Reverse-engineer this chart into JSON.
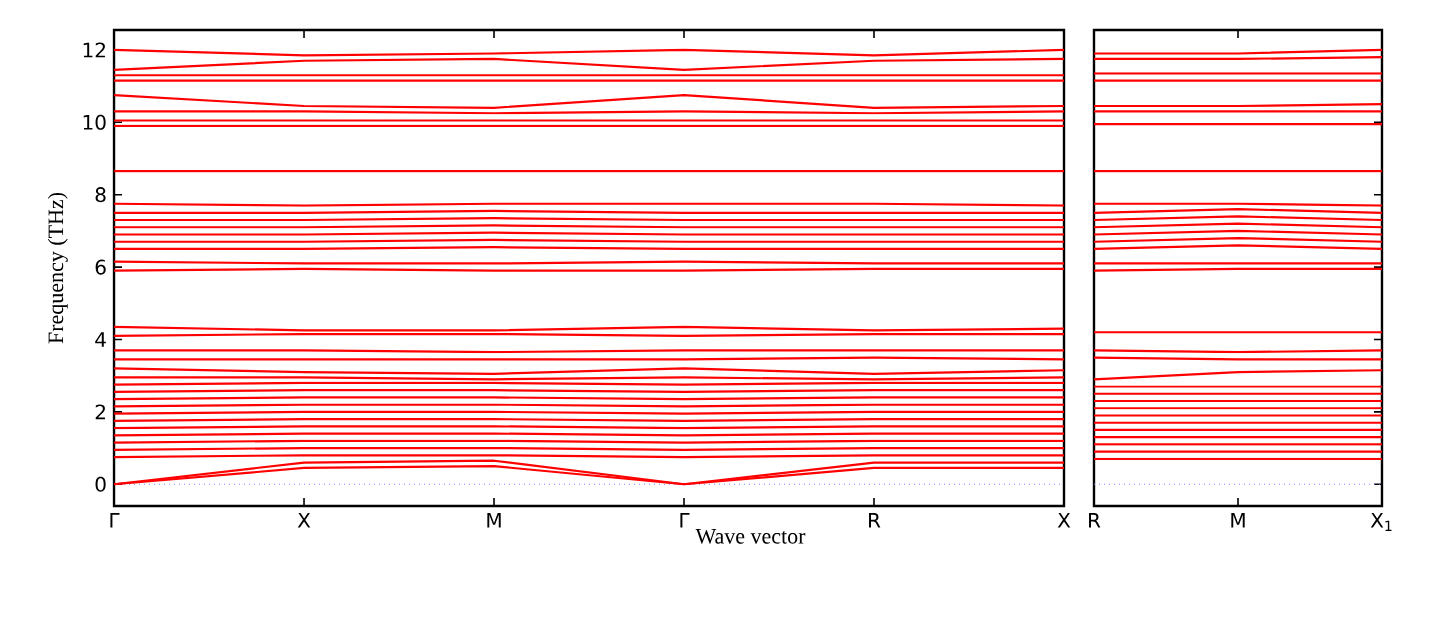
{
  "chart_data": [
    {
      "type": "line",
      "xlabel": "Wave vector",
      "ylabel": "Frequency (THz)",
      "categories": [
        "Γ",
        "X",
        "M",
        "Γ",
        "R",
        "X"
      ],
      "ylim": [
        -0.6,
        12.55
      ],
      "yticks": [
        0,
        2,
        4,
        6,
        8,
        10,
        12
      ],
      "line_style": "solid",
      "ref_lines": [
        {
          "axis": "y",
          "value": 0,
          "color": "#8080ff",
          "line_style": "dotted"
        }
      ],
      "series": [
        {
          "color": "#ff0000",
          "values": [
            0,
            0.45,
            0.5,
            0,
            0.45,
            0.45
          ]
        },
        {
          "color": "#ff0000",
          "values": [
            0,
            0.6,
            0.65,
            0,
            0.6,
            0.6
          ]
        },
        {
          "color": "#ff0000",
          "values": [
            0.75,
            0.8,
            0.8,
            0.75,
            0.8,
            0.8
          ]
        },
        {
          "color": "#ff0000",
          "values": [
            0.95,
            1.0,
            1.0,
            0.95,
            1.0,
            1.0
          ]
        },
        {
          "color": "#ff0000",
          "values": [
            1.15,
            1.2,
            1.2,
            1.15,
            1.2,
            1.2
          ]
        },
        {
          "color": "#ff0000",
          "values": [
            1.35,
            1.4,
            1.4,
            1.35,
            1.4,
            1.4
          ]
        },
        {
          "color": "#ff0000",
          "values": [
            1.55,
            1.6,
            1.6,
            1.55,
            1.6,
            1.6
          ]
        },
        {
          "color": "#ff0000",
          "values": [
            1.75,
            1.8,
            1.8,
            1.75,
            1.8,
            1.8
          ]
        },
        {
          "color": "#ff0000",
          "values": [
            1.95,
            2.0,
            2.0,
            1.95,
            2.0,
            2.0
          ]
        },
        {
          "color": "#ff0000",
          "values": [
            2.15,
            2.2,
            2.2,
            2.15,
            2.2,
            2.2
          ]
        },
        {
          "color": "#ff0000",
          "values": [
            2.35,
            2.4,
            2.4,
            2.35,
            2.4,
            2.4
          ]
        },
        {
          "color": "#ff0000",
          "values": [
            2.55,
            2.6,
            2.6,
            2.55,
            2.6,
            2.6
          ]
        },
        {
          "color": "#ff0000",
          "values": [
            2.75,
            2.8,
            2.8,
            2.75,
            2.8,
            2.8
          ]
        },
        {
          "color": "#ff0000",
          "values": [
            2.95,
            2.95,
            2.9,
            2.95,
            2.9,
            2.95
          ]
        },
        {
          "color": "#ff0000",
          "values": [
            3.2,
            3.1,
            3.05,
            3.2,
            3.05,
            3.15
          ]
        },
        {
          "color": "#ff0000",
          "values": [
            3.45,
            3.45,
            3.45,
            3.45,
            3.5,
            3.45
          ]
        },
        {
          "color": "#ff0000",
          "values": [
            3.7,
            3.7,
            3.65,
            3.7,
            3.7,
            3.7
          ]
        },
        {
          "color": "#ff0000",
          "values": [
            4.1,
            4.15,
            4.15,
            4.1,
            4.15,
            4.15
          ]
        },
        {
          "color": "#ff0000",
          "values": [
            4.35,
            4.25,
            4.25,
            4.35,
            4.25,
            4.3
          ]
        },
        {
          "color": "#ff0000",
          "values": [
            5.9,
            5.95,
            5.9,
            5.9,
            5.95,
            5.95
          ]
        },
        {
          "color": "#ff0000",
          "values": [
            6.15,
            6.1,
            6.1,
            6.15,
            6.1,
            6.1
          ]
        },
        {
          "color": "#ff0000",
          "values": [
            6.5,
            6.5,
            6.55,
            6.5,
            6.5,
            6.5
          ]
        },
        {
          "color": "#ff0000",
          "values": [
            6.7,
            6.7,
            6.75,
            6.7,
            6.7,
            6.7
          ]
        },
        {
          "color": "#ff0000",
          "values": [
            6.9,
            6.9,
            6.95,
            6.9,
            6.9,
            6.9
          ]
        },
        {
          "color": "#ff0000",
          "values": [
            7.1,
            7.1,
            7.15,
            7.1,
            7.1,
            7.1
          ]
        },
        {
          "color": "#ff0000",
          "values": [
            7.3,
            7.3,
            7.35,
            7.3,
            7.3,
            7.3
          ]
        },
        {
          "color": "#ff0000",
          "values": [
            7.5,
            7.5,
            7.55,
            7.5,
            7.5,
            7.5
          ]
        },
        {
          "color": "#ff0000",
          "values": [
            7.75,
            7.7,
            7.75,
            7.75,
            7.75,
            7.7
          ]
        },
        {
          "color": "#ff0000",
          "values": [
            8.65,
            8.65,
            8.65,
            8.65,
            8.65,
            8.65
          ]
        },
        {
          "color": "#ff0000",
          "values": [
            9.9,
            9.9,
            9.9,
            9.9,
            9.9,
            9.9
          ]
        },
        {
          "color": "#ff0000",
          "values": [
            10.05,
            10.05,
            10.05,
            10.05,
            10.05,
            10.05
          ]
        },
        {
          "color": "#ff0000",
          "values": [
            10.3,
            10.3,
            10.25,
            10.3,
            10.25,
            10.3
          ]
        },
        {
          "color": "#ff0000",
          "values": [
            10.75,
            10.45,
            10.4,
            10.75,
            10.4,
            10.45
          ]
        },
        {
          "color": "#ff0000",
          "values": [
            11.15,
            11.15,
            11.15,
            11.15,
            11.15,
            11.15
          ]
        },
        {
          "color": "#ff0000",
          "values": [
            11.3,
            11.3,
            11.3,
            11.3,
            11.3,
            11.3
          ]
        },
        {
          "color": "#ff0000",
          "values": [
            11.45,
            11.7,
            11.75,
            11.45,
            11.7,
            11.75
          ]
        },
        {
          "color": "#ff0000",
          "values": [
            12.0,
            11.85,
            11.9,
            12.0,
            11.85,
            12.0
          ]
        }
      ]
    },
    {
      "type": "line",
      "categories": [
        "R",
        "M",
        "X$_{1}$"
      ],
      "ylim": [
        -0.6,
        12.55
      ],
      "yticks": [
        {
          "value": 0,
          "label": null
        },
        {
          "value": 2,
          "label": null
        },
        {
          "value": 4,
          "label": null
        },
        {
          "value": 6,
          "label": null
        },
        {
          "value": 8,
          "label": null
        },
        {
          "value": 10,
          "label": null
        },
        {
          "value": 12,
          "label": null
        }
      ],
      "tick_labels": "x",
      "line_style": "solid",
      "ref_lines": [
        {
          "axis": "y",
          "value": 0,
          "color": "#8080ff",
          "line_style": "dotted"
        }
      ],
      "series": [
        {
          "color": "#ff0000",
          "values": [
            0.7,
            0.7,
            0.7
          ]
        },
        {
          "color": "#ff0000",
          "values": [
            0.9,
            0.9,
            0.9
          ]
        },
        {
          "color": "#ff0000",
          "values": [
            1.1,
            1.1,
            1.1
          ]
        },
        {
          "color": "#ff0000",
          "values": [
            1.3,
            1.3,
            1.3
          ]
        },
        {
          "color": "#ff0000",
          "values": [
            1.5,
            1.5,
            1.5
          ]
        },
        {
          "color": "#ff0000",
          "values": [
            1.7,
            1.7,
            1.7
          ]
        },
        {
          "color": "#ff0000",
          "values": [
            1.9,
            1.9,
            1.9
          ]
        },
        {
          "color": "#ff0000",
          "values": [
            2.1,
            2.1,
            2.1
          ]
        },
        {
          "color": "#ff0000",
          "values": [
            2.3,
            2.3,
            2.3
          ]
        },
        {
          "color": "#ff0000",
          "values": [
            2.5,
            2.5,
            2.5
          ]
        },
        {
          "color": "#ff0000",
          "values": [
            2.7,
            2.7,
            2.7
          ]
        },
        {
          "color": "#ff0000",
          "values": [
            2.9,
            3.1,
            3.15
          ]
        },
        {
          "color": "#ff0000",
          "values": [
            3.5,
            3.45,
            3.45
          ]
        },
        {
          "color": "#ff0000",
          "values": [
            3.7,
            3.65,
            3.7
          ]
        },
        {
          "color": "#ff0000",
          "values": [
            4.2,
            4.2,
            4.2
          ]
        },
        {
          "color": "#ff0000",
          "values": [
            5.9,
            5.95,
            5.95
          ]
        },
        {
          "color": "#ff0000",
          "values": [
            6.1,
            6.1,
            6.1
          ]
        },
        {
          "color": "#ff0000",
          "values": [
            6.5,
            6.6,
            6.5
          ]
        },
        {
          "color": "#ff0000",
          "values": [
            6.7,
            6.8,
            6.7
          ]
        },
        {
          "color": "#ff0000",
          "values": [
            6.9,
            7.0,
            6.9
          ]
        },
        {
          "color": "#ff0000",
          "values": [
            7.1,
            7.2,
            7.1
          ]
        },
        {
          "color": "#ff0000",
          "values": [
            7.3,
            7.4,
            7.3
          ]
        },
        {
          "color": "#ff0000",
          "values": [
            7.5,
            7.6,
            7.5
          ]
        },
        {
          "color": "#ff0000",
          "values": [
            7.75,
            7.75,
            7.7
          ]
        },
        {
          "color": "#ff0000",
          "values": [
            8.65,
            8.65,
            8.65
          ]
        },
        {
          "color": "#ff0000",
          "values": [
            9.95,
            9.95,
            9.95
          ]
        },
        {
          "color": "#ff0000",
          "values": [
            10.3,
            10.3,
            10.3
          ]
        },
        {
          "color": "#ff0000",
          "values": [
            10.45,
            10.45,
            10.5
          ]
        },
        {
          "color": "#ff0000",
          "values": [
            11.15,
            11.15,
            11.15
          ]
        },
        {
          "color": "#ff0000",
          "values": [
            11.35,
            11.35,
            11.35
          ]
        },
        {
          "color": "#ff0000",
          "values": [
            11.75,
            11.75,
            11.8
          ]
        },
        {
          "color": "#ff0000",
          "values": [
            11.9,
            11.9,
            12.0
          ]
        }
      ]
    }
  ]
}
